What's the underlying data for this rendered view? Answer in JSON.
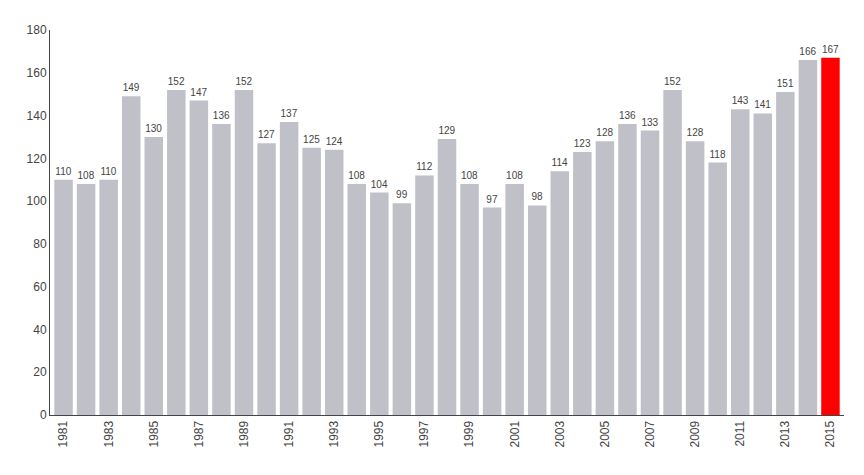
{
  "chart_data": {
    "type": "bar",
    "categories": [
      "1981",
      null,
      "1983",
      null,
      "1985",
      null,
      "1987",
      null,
      "1989",
      null,
      "1991",
      null,
      "1993",
      null,
      "1995",
      null,
      "1997",
      null,
      "1999",
      null,
      "2001",
      null,
      "2003",
      null,
      "2005",
      null,
      "2007",
      null,
      "2009",
      null,
      "2011",
      null,
      "2013",
      null,
      "2015"
    ],
    "values": [
      110,
      108,
      110,
      149,
      130,
      152,
      147,
      136,
      152,
      127,
      137,
      125,
      124,
      108,
      104,
      99,
      112,
      129,
      108,
      97,
      108,
      98,
      114,
      123,
      128,
      136,
      133,
      152,
      128,
      118,
      143,
      141,
      151,
      166,
      167
    ],
    "colors": [
      "#c0c0c8",
      "#c0c0c8",
      "#c0c0c8",
      "#c0c0c8",
      "#c0c0c8",
      "#c0c0c8",
      "#c0c0c8",
      "#c0c0c8",
      "#c0c0c8",
      "#c0c0c8",
      "#c0c0c8",
      "#c0c0c8",
      "#c0c0c8",
      "#c0c0c8",
      "#c0c0c8",
      "#c0c0c8",
      "#c0c0c8",
      "#c0c0c8",
      "#c0c0c8",
      "#c0c0c8",
      "#c0c0c8",
      "#c0c0c8",
      "#c0c0c8",
      "#c0c0c8",
      "#c0c0c8",
      "#c0c0c8",
      "#c0c0c8",
      "#c0c0c8",
      "#c0c0c8",
      "#c0c0c8",
      "#c0c0c8",
      "#c0c0c8",
      "#c0c0c8",
      "#c0c0c8",
      "#ff0000"
    ],
    "ylim": [
      0,
      180
    ],
    "yticks": [
      0,
      20,
      40,
      60,
      80,
      100,
      120,
      140,
      160,
      180
    ],
    "grid": false,
    "data_labels": true
  }
}
